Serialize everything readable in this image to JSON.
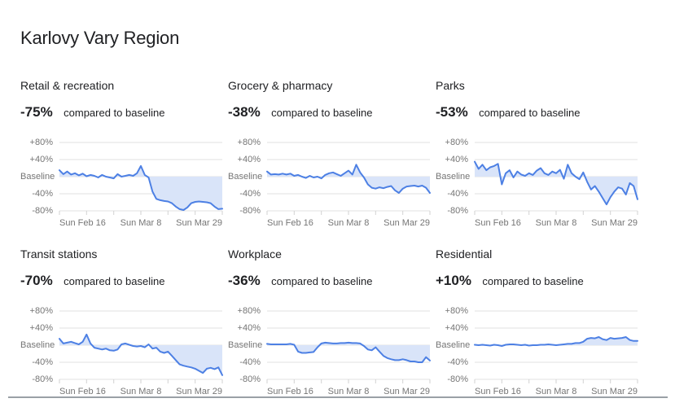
{
  "page": {
    "title": "Karlovy Vary Region"
  },
  "colors": {
    "line": "#4d80e4",
    "fill": "#d9e4f9",
    "grid": "#e0e0e0",
    "tick": "#d2d2d2",
    "axis_text": "#757575",
    "heading": "#202124",
    "divider": "#9aa0a6"
  },
  "chart_data": [
    {
      "type": "area",
      "title": "Retail & recreation",
      "headline": "-75%",
      "caption": "compared to baseline",
      "y_ticks": [
        "+80%",
        "+40%",
        "Baseline",
        "-40%",
        "-80%"
      ],
      "x_ticks": [
        "Sun Feb 16",
        "Sun Mar 8",
        "Sun Mar 29"
      ],
      "ylim": [
        -80,
        80
      ],
      "x_range": [
        "Feb 16",
        "Mar 29"
      ],
      "grid": true,
      "legend": "none",
      "values": [
        15,
        6,
        12,
        5,
        8,
        3,
        7,
        1,
        4,
        2,
        -2,
        4,
        0,
        -2,
        -4,
        6,
        0,
        2,
        4,
        2,
        8,
        25,
        4,
        -2,
        -35,
        -52,
        -55,
        -57,
        -58,
        -62,
        -70,
        -76,
        -78,
        -72,
        -62,
        -59,
        -58,
        -59,
        -60,
        -62,
        -70,
        -76,
        -75
      ]
    },
    {
      "type": "area",
      "title": "Grocery & pharmacy",
      "headline": "-38%",
      "caption": "compared to baseline",
      "y_ticks": [
        "+80%",
        "+40%",
        "Baseline",
        "-40%",
        "-80%"
      ],
      "x_ticks": [
        "Sun Feb 16",
        "Sun Mar 8",
        "Sun Mar 29"
      ],
      "ylim": [
        -80,
        80
      ],
      "x_range": [
        "Feb 16",
        "Mar 29"
      ],
      "grid": true,
      "legend": "none",
      "values": [
        12,
        5,
        6,
        5,
        7,
        5,
        7,
        2,
        4,
        0,
        -3,
        2,
        -2,
        0,
        -4,
        4,
        8,
        10,
        6,
        2,
        8,
        14,
        5,
        28,
        10,
        -2,
        -18,
        -26,
        -28,
        -25,
        -27,
        -24,
        -22,
        -32,
        -38,
        -28,
        -23,
        -22,
        -21,
        -23,
        -21,
        -26,
        -38
      ]
    },
    {
      "type": "area",
      "title": "Parks",
      "headline": "-53%",
      "caption": "compared to baseline",
      "y_ticks": [
        "+80%",
        "+40%",
        "Baseline",
        "-40%",
        "-80%"
      ],
      "x_ticks": [
        "Sun Feb 16",
        "Sun Mar 8",
        "Sun Mar 29"
      ],
      "ylim": [
        -80,
        80
      ],
      "x_range": [
        "Feb 16",
        "Mar 29"
      ],
      "grid": true,
      "legend": "none",
      "values": [
        35,
        18,
        28,
        15,
        22,
        25,
        30,
        -18,
        8,
        15,
        -2,
        12,
        5,
        2,
        8,
        4,
        14,
        20,
        8,
        4,
        12,
        8,
        16,
        -5,
        28,
        8,
        0,
        -6,
        10,
        -12,
        -30,
        -22,
        -35,
        -50,
        -65,
        -48,
        -35,
        -25,
        -28,
        -42,
        -15,
        -22,
        -53
      ]
    },
    {
      "type": "area",
      "title": "Transit stations",
      "headline": "-70%",
      "caption": "compared to baseline",
      "y_ticks": [
        "+80%",
        "+40%",
        "Baseline",
        "-40%",
        "-80%"
      ],
      "x_ticks": [
        "Sun Feb 16",
        "Sun Mar 8",
        "Sun Mar 29"
      ],
      "ylim": [
        -80,
        80
      ],
      "x_range": [
        "Feb 16",
        "Mar 29"
      ],
      "grid": true,
      "legend": "none",
      "values": [
        15,
        4,
        6,
        8,
        5,
        2,
        8,
        25,
        4,
        -6,
        -8,
        -10,
        -8,
        -12,
        -13,
        -10,
        2,
        4,
        1,
        -2,
        -3,
        -2,
        -5,
        2,
        -8,
        -6,
        -15,
        -18,
        -15,
        -25,
        -35,
        -45,
        -48,
        -50,
        -52,
        -55,
        -60,
        -65,
        -55,
        -53,
        -56,
        -52,
        -70
      ]
    },
    {
      "type": "area",
      "title": "Workplace",
      "headline": "-36%",
      "caption": "compared to baseline",
      "y_ticks": [
        "+80%",
        "+40%",
        "Baseline",
        "-40%",
        "-80%"
      ],
      "x_ticks": [
        "Sun Feb 16",
        "Sun Mar 8",
        "Sun Mar 29"
      ],
      "ylim": [
        -80,
        80
      ],
      "x_range": [
        "Feb 16",
        "Mar 29"
      ],
      "grid": true,
      "legend": "none",
      "values": [
        3,
        2,
        2,
        2,
        2,
        2,
        3,
        1,
        -15,
        -18,
        -18,
        -17,
        -16,
        -5,
        4,
        6,
        5,
        4,
        4,
        5,
        5,
        6,
        5,
        5,
        4,
        -2,
        -10,
        -12,
        -5,
        -15,
        -25,
        -30,
        -33,
        -35,
        -35,
        -33,
        -35,
        -38,
        -38,
        -40,
        -40,
        -28,
        -36
      ]
    },
    {
      "type": "area",
      "title": "Residential",
      "headline": "+10%",
      "caption": "compared to baseline",
      "y_ticks": [
        "+80%",
        "+40%",
        "Baseline",
        "-40%",
        "-80%"
      ],
      "x_ticks": [
        "Sun Feb 16",
        "Sun Mar 8",
        "Sun Mar 29"
      ],
      "ylim": [
        -80,
        80
      ],
      "x_range": [
        "Feb 16",
        "Mar 29"
      ],
      "grid": true,
      "legend": "none",
      "values": [
        1,
        0,
        1,
        0,
        -1,
        1,
        0,
        -2,
        1,
        2,
        2,
        1,
        0,
        1,
        -1,
        0,
        0,
        1,
        1,
        2,
        1,
        0,
        1,
        2,
        3,
        3,
        5,
        5,
        8,
        15,
        17,
        16,
        19,
        14,
        12,
        17,
        15,
        16,
        17,
        19,
        12,
        10,
        10
      ]
    }
  ]
}
